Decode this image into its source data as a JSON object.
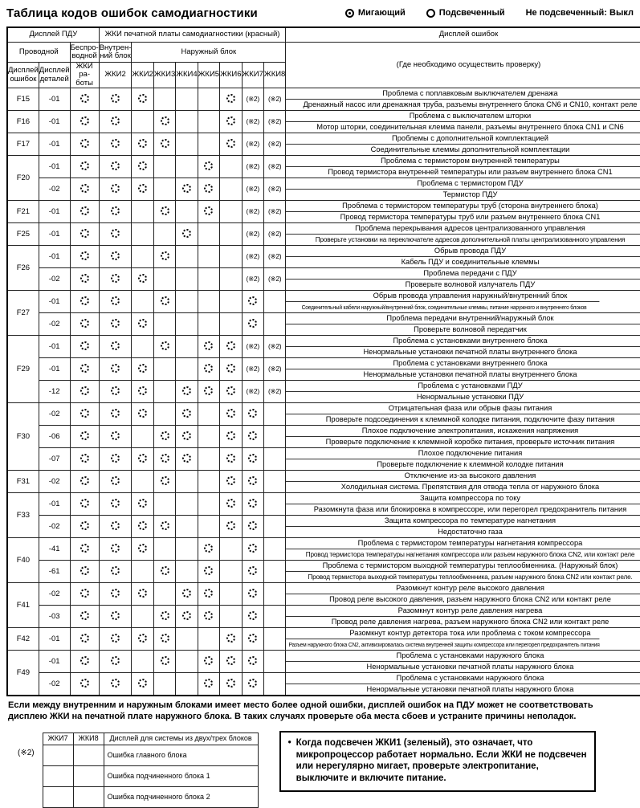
{
  "title": "Таблица кодов ошибок самодиагностики",
  "legend": {
    "flashing": "Мигающий",
    "lit": "Подсвеченный",
    "unlit": "Не подсвеченный: Выкл"
  },
  "table": {
    "header": {
      "remote_display": "Дисплей ПДУ",
      "wired": "Проводной",
      "wireless": "Беспро- водной",
      "error_display": "Дисплей ошибок",
      "detail_display": "Дисплей деталей",
      "run_lcd": "ЖКИ ра- боты",
      "selfdiag": "ЖКИ печатной платы самодиагностики (красный)",
      "indoor": "Внутрен- ний блок",
      "outdoor": "Наружный блок",
      "indoor_led": "ЖКИ2",
      "outdoor_leds": [
        "ЖКИ2",
        "ЖКИ3",
        "ЖКИ4",
        "ЖКИ5",
        "ЖКИ6",
        "ЖКИ7",
        "ЖКИ8"
      ],
      "error_col": "Дисплей ошибок",
      "error_col_sub": "(Где необходимо осуществить проверку)"
    },
    "note2_mark": "(※2)",
    "rows": [
      {
        "code": "F15",
        "details": [
          {
            "d": "-01",
            "leds": [
              "F",
              "F",
              "F",
              "",
              "",
              "",
              "F",
              "N",
              "N"
            ],
            "lines": [
              "Проблема с поплавковым выключателем дренажа",
              "Дренажный насос или дренажная труба, разъемы внутреннего блока CN6 и CN10, контакт реле"
            ]
          }
        ]
      },
      {
        "code": "F16",
        "details": [
          {
            "d": "-01",
            "leds": [
              "F",
              "F",
              "",
              "F",
              "",
              "",
              "F",
              "N",
              "N"
            ],
            "lines": [
              "Проблема с выключателем шторки",
              "Мотор шторки, соединительная клемма панели, разъемы внутреннего блока CN1 и CN6"
            ]
          }
        ]
      },
      {
        "code": "F17",
        "details": [
          {
            "d": "-01",
            "leds": [
              "F",
              "F",
              "F",
              "F",
              "",
              "",
              "F",
              "N",
              "N"
            ],
            "lines": [
              "Проблемы с дополнительной комплектацией",
              "Соединительные клеммы дополнительной комплектации"
            ]
          }
        ]
      },
      {
        "code": "F20",
        "details": [
          {
            "d": "-01",
            "leds": [
              "F",
              "F",
              "F",
              "",
              "",
              "F",
              "",
              "N",
              "N"
            ],
            "lines": [
              "Проблема с термистором внутренней температуры",
              "Провод термистора внутренней температуры или разъем внутреннего блока CN1"
            ]
          },
          {
            "d": "-02",
            "leds": [
              "F",
              "F",
              "F",
              "",
              "F",
              "F",
              "",
              "N",
              "N"
            ],
            "lines": [
              "Проблема с термистором ПДУ",
              "Термистор ПДУ"
            ]
          }
        ]
      },
      {
        "code": "F21",
        "details": [
          {
            "d": "-01",
            "leds": [
              "F",
              "F",
              "",
              "F",
              "",
              "F",
              "",
              "N",
              "N"
            ],
            "lines": [
              "Проблема с термистором температуры труб (сторона внутреннего блока)",
              "Провод термистора температуры труб или разъем внутреннего блока CN1"
            ]
          }
        ]
      },
      {
        "code": "F25",
        "details": [
          {
            "d": "-01",
            "leds": [
              "F",
              "F",
              "",
              "",
              "F",
              "",
              "",
              "N",
              "N"
            ],
            "lines": [
              "Проблема перекрывания адресов централизованного управления",
              "Проверьте установки на переключателе адресов дополнительной платы централизованного управления"
            ]
          }
        ]
      },
      {
        "code": "F26",
        "details": [
          {
            "d": "-01",
            "leds": [
              "F",
              "F",
              "",
              "F",
              "",
              "",
              "",
              "N",
              "N"
            ],
            "lines": [
              "Обрыв провода ПДУ",
              "Кабель ПДУ и соединительные клеммы"
            ]
          },
          {
            "d": "-02",
            "leds": [
              "F",
              "F",
              "F",
              "",
              "",
              "",
              "",
              "N",
              "N"
            ],
            "lines": [
              "Проблема передачи с ПДУ",
              "Проверьте волновой излучатель ПДУ"
            ]
          }
        ]
      },
      {
        "code": "F27",
        "details": [
          {
            "d": "-01",
            "leds": [
              "F",
              "F",
              "",
              "F",
              "",
              "",
              "",
              "F",
              ""
            ],
            "lines": [
              "Обрыв провода управления наружный/внутренний блок",
              "Соединительный кабели наружный/внутренний блок, соединительные клеммы, питание наружного и внутреннего блоков"
            ]
          },
          {
            "d": "-02",
            "leds": [
              "F",
              "F",
              "F",
              "",
              "",
              "",
              "",
              "F",
              ""
            ],
            "lines": [
              "Проблема передачи внутренний/наружный блок",
              "Проверьте волновой передатчик"
            ]
          }
        ]
      },
      {
        "code": "F29",
        "details": [
          {
            "d": "-01",
            "leds": [
              "F",
              "F",
              "",
              "F",
              "",
              "F",
              "F",
              "N",
              "N"
            ],
            "lines": [
              "Проблема с установками внутреннего блока",
              "Ненормальные установки печатной платы внутреннего блока"
            ]
          },
          {
            "d": "-01",
            "leds": [
              "F",
              "F",
              "F",
              "",
              "",
              "F",
              "F",
              "N",
              "N"
            ],
            "lines": [
              "Проблема с установками внутреннего блока",
              "Ненормальные установки печатной платы внутреннего блока"
            ]
          },
          {
            "d": "-12",
            "leds": [
              "F",
              "F",
              "F",
              "",
              "F",
              "F",
              "F",
              "N",
              "N"
            ],
            "lines": [
              "Проблема с установками ПДУ",
              "Ненормальные установки ПДУ"
            ]
          }
        ]
      },
      {
        "code": "F30",
        "details": [
          {
            "d": "-02",
            "leds": [
              "F",
              "F",
              "F",
              "",
              "F",
              "",
              "F",
              "F",
              ""
            ],
            "lines": [
              "Отрицательная фаза или обрыв фазы питания",
              "Проверьте подсоединения к клеммной колодке питания, подключите фазу питания"
            ]
          },
          {
            "d": "-06",
            "leds": [
              "F",
              "F",
              "",
              "F",
              "F",
              "",
              "F",
              "F",
              ""
            ],
            "lines": [
              "Плохое подключение электропитания, искажения напряжения",
              "Проверьте подключение к клеммной коробке питания, проверьте источник питания"
            ]
          },
          {
            "d": "-07",
            "leds": [
              "F",
              "F",
              "F",
              "F",
              "F",
              "",
              "F",
              "F",
              ""
            ],
            "lines": [
              "Плохое подключение питания",
              "Проверьте подключение к клеммной колодке питания"
            ]
          }
        ]
      },
      {
        "code": "F31",
        "details": [
          {
            "d": "-02",
            "leds": [
              "F",
              "F",
              "",
              "F",
              "",
              "",
              "F",
              "F",
              ""
            ],
            "lines": [
              "Отключение из-за высокого давления",
              "Холодильная система. Препятствия для отвода тепла от наружного блока"
            ]
          }
        ]
      },
      {
        "code": "F33",
        "details": [
          {
            "d": "-01",
            "leds": [
              "F",
              "F",
              "F",
              "",
              "",
              "",
              "F",
              "F",
              ""
            ],
            "lines": [
              "Защита компрессора по току",
              "Разомкнута фаза или блокировка в компрессоре, или перегорел предохранитель питания"
            ]
          },
          {
            "d": "-02",
            "leds": [
              "F",
              "F",
              "F",
              "F",
              "",
              "",
              "F",
              "F",
              ""
            ],
            "lines": [
              "Защита компрессора по температуре нагнетания",
              "Недостаточно газа"
            ]
          }
        ]
      },
      {
        "code": "F40",
        "details": [
          {
            "d": "-41",
            "leds": [
              "F",
              "F",
              "F",
              "",
              "",
              "F",
              "",
              "F",
              ""
            ],
            "lines": [
              "Проблема с термистором температуры нагнетания компрессора",
              "Провод термистора температуры нагнетания компрессора или разъем наружного блока CN2, или контакт реле"
            ]
          },
          {
            "d": "-61",
            "leds": [
              "F",
              "F",
              "",
              "F",
              "",
              "F",
              "",
              "F",
              ""
            ],
            "lines": [
              "Проблема с термистором выходной температуры теплообменника. (Наружный блок)",
              "Провод термистора выходной температуры теплообменника, разъем наружного блока CN2 или контакт реле."
            ]
          }
        ]
      },
      {
        "code": "F41",
        "details": [
          {
            "d": "-02",
            "leds": [
              "F",
              "F",
              "F",
              "",
              "F",
              "F",
              "",
              "F",
              ""
            ],
            "lines": [
              "Разомкнут контур реле высокого давления",
              "Провод реле высокого давления, разъем наружного блока CN2 или контакт реле"
            ]
          },
          {
            "d": "-03",
            "leds": [
              "F",
              "F",
              "",
              "F",
              "F",
              "F",
              "",
              "F",
              ""
            ],
            "lines": [
              "Разомкнут контур реле давления нагрева",
              "Провод реле давления нагрева, разъем наружного блока CN2 или контакт реле"
            ]
          }
        ]
      },
      {
        "code": "F42",
        "details": [
          {
            "d": "-01",
            "leds": [
              "F",
              "F",
              "F",
              "F",
              "",
              "",
              "F",
              "F",
              ""
            ],
            "lines": [
              "Разомкнут контур детектора тока или проблема с током компрессора",
              "Разъем наружного блока CN2, активизировалась система внутренней защиты компрессора или перегорел предохранитель питания"
            ]
          }
        ]
      },
      {
        "code": "F49",
        "details": [
          {
            "d": "-01",
            "leds": [
              "F",
              "F",
              "",
              "F",
              "",
              "F",
              "F",
              "F",
              ""
            ],
            "lines": [
              "Проблема с установками наружного блока",
              "Ненормальные установки печатной платы наружного блока"
            ]
          },
          {
            "d": "-02",
            "leds": [
              "F",
              "F",
              "F",
              "",
              "",
              "F",
              "F",
              "F",
              ""
            ],
            "lines": [
              "Проблема с установками наружного блока",
              "Ненормальные установки печатной платы наружного блока"
            ]
          }
        ]
      }
    ]
  },
  "footer_note": "Если между внутренним и наружным блоками имеет место более одной ошибки, дисплей ошибок на ПДУ может не соответствовать дисплею ЖКИ на печатной плате наружного блока. В таких случаях  проверьте оба места сбоев и устраните причины неполадок.",
  "note2_table": {
    "mark": "(※2)",
    "headers": [
      "ЖКИ7",
      "ЖКИ8",
      "Дисплей для системы из двух/трех блоков"
    ],
    "rows": [
      "Ошибка главного блока",
      "Ошибка подчиненного блока 1",
      "Ошибка подчиненного блока 2"
    ]
  },
  "microprocessor_note": "Когда подсвечен ЖКИ1 (зеленый), это означает, что микропроцессор работает нормально. Если ЖКИ не подсвечен или нерегулярно мигает, проверьте электропитание, выключите и включите питание.",
  "bullet_char": "•"
}
